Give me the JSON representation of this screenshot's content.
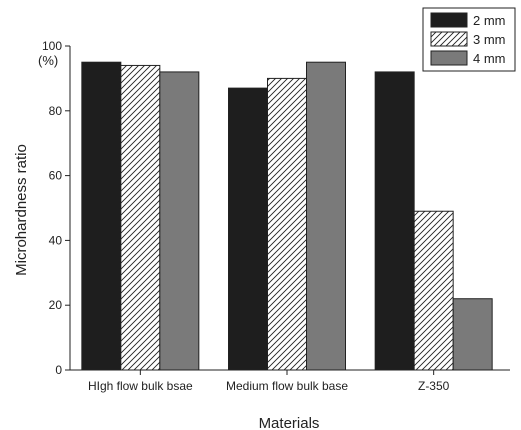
{
  "chart_data": {
    "type": "bar",
    "categories": [
      "HIgh flow bulk bsae",
      "Medium flow bulk base",
      "Z-350"
    ],
    "series": [
      {
        "name": "2 mm",
        "values": [
          95,
          87,
          92
        ],
        "fill": "solid",
        "color": "#1e1e1e"
      },
      {
        "name": "3 mm",
        "values": [
          94,
          90,
          49
        ],
        "fill": "hatched",
        "color": "#ffffff"
      },
      {
        "name": "4 mm",
        "values": [
          92,
          95,
          22
        ],
        "fill": "solid",
        "color": "#7a7a7a"
      }
    ],
    "title": "",
    "xlabel": "Materials",
    "ylabel": "Microhardness ratio",
    "yunit": "(%)",
    "ylim": [
      0,
      100
    ],
    "yticks": [
      0,
      20,
      40,
      60,
      80,
      100
    ],
    "grid": false,
    "legend": "top-right"
  }
}
